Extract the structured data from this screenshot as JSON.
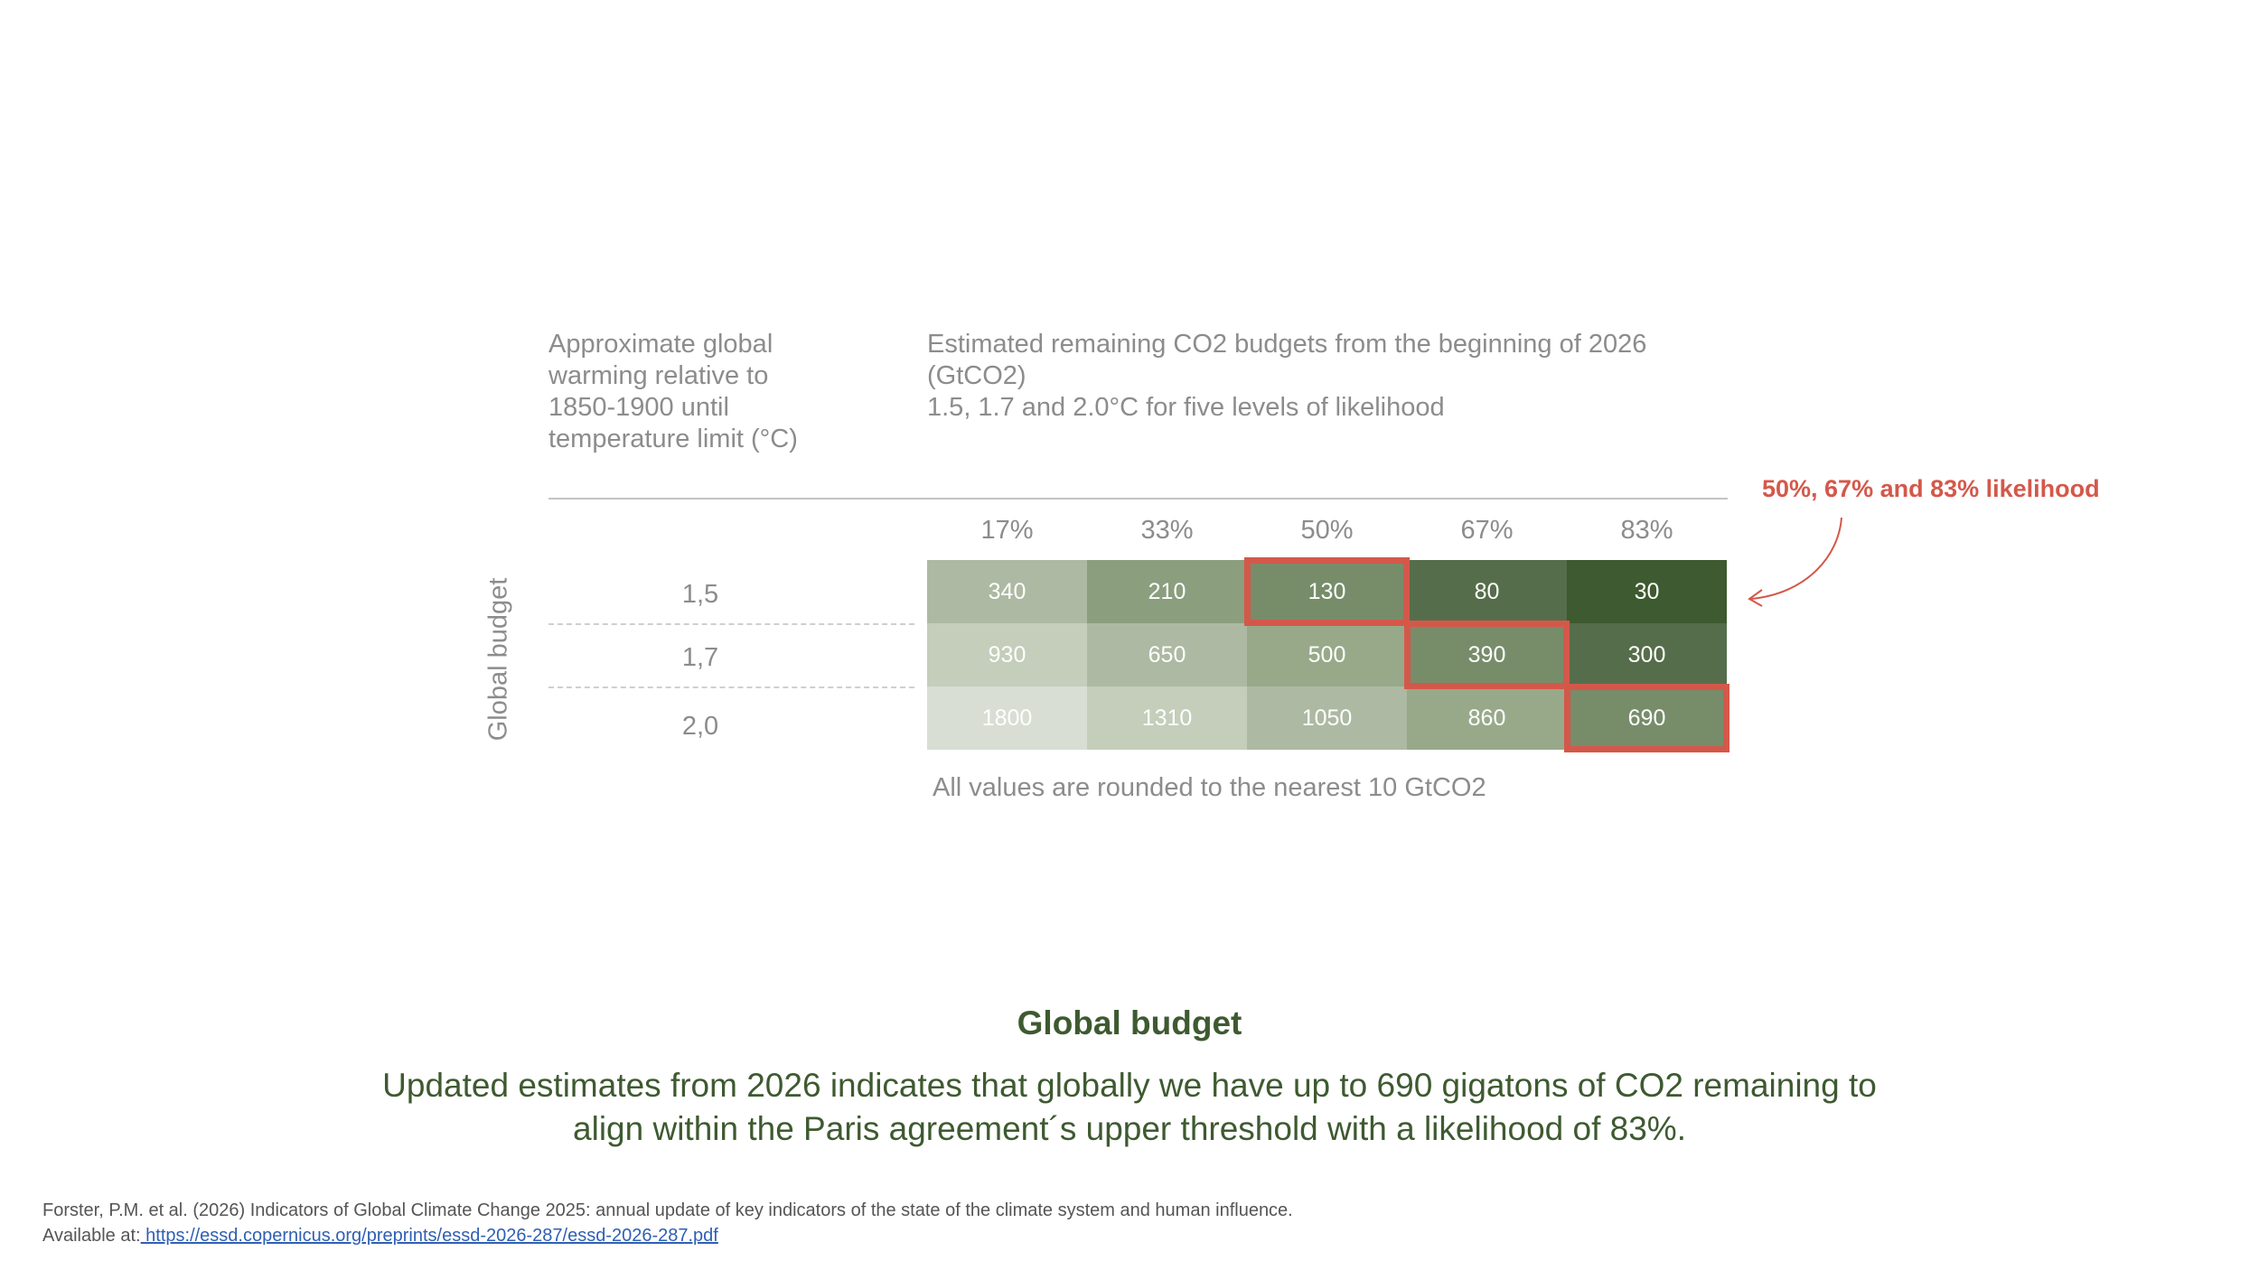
{
  "header": {
    "left_title_lines": [
      "Approximate global",
      "warming relative to",
      "1850-1900 until",
      "temperature limit (°C)"
    ],
    "right_title_lines": [
      "Estimated remaining CO2 budgets  from the beginning of 2026",
      "(GtCO2)",
      "1.5, 1.7 and 2.0°C for five levels of likelihood"
    ]
  },
  "annotation": "50%, 67% and 83% likelihood",
  "y_axis_label": "Global budget",
  "footnote": "All values are rounded to the nearest 10 GtCO2",
  "summary": {
    "title": "Global budget",
    "text": "Updated estimates from 2026 indicates that globally we have up to 690 gigatons of CO2 remaining to align within the Paris agreement´s upper threshold with a likelihood of 83%."
  },
  "reference": {
    "line1": "Forster, P.M. et al. (2026) Indicators of Global Climate Change 2025: annual update of key indicators of the state of the climate system and human influence.",
    "available_prefix": "Available at:",
    "link": " https://essd.copernicus.org/preprints/essd-2026-287/essd-2026-287.pdf"
  },
  "colors": {
    "highlight": "#d4584a",
    "annotation": "#d4584a",
    "title_green": "#3e5a30"
  },
  "chart_data": {
    "type": "heatmap",
    "columns": [
      "17%",
      "33%",
      "50%",
      "67%",
      "83%"
    ],
    "rows": [
      "1,5",
      "1,7",
      "2,0"
    ],
    "values": [
      [
        340,
        210,
        130,
        80,
        30
      ],
      [
        930,
        650,
        500,
        390,
        300
      ],
      [
        1800,
        1310,
        1050,
        860,
        690
      ]
    ],
    "cell_colors": [
      [
        "#adb9a2",
        "#8b9e7e",
        "#778d6a",
        "#566d4b",
        "#3e5a30"
      ],
      [
        "#c4cebb",
        "#adb9a2",
        "#98a98a",
        "#778d6a",
        "#566d4b"
      ],
      [
        "#d8ded3",
        "#c4cebb",
        "#adb9a2",
        "#98a98a",
        "#778d6a"
      ]
    ],
    "highlighted": [
      [
        0,
        2
      ],
      [
        1,
        3
      ],
      [
        2,
        4
      ]
    ]
  }
}
